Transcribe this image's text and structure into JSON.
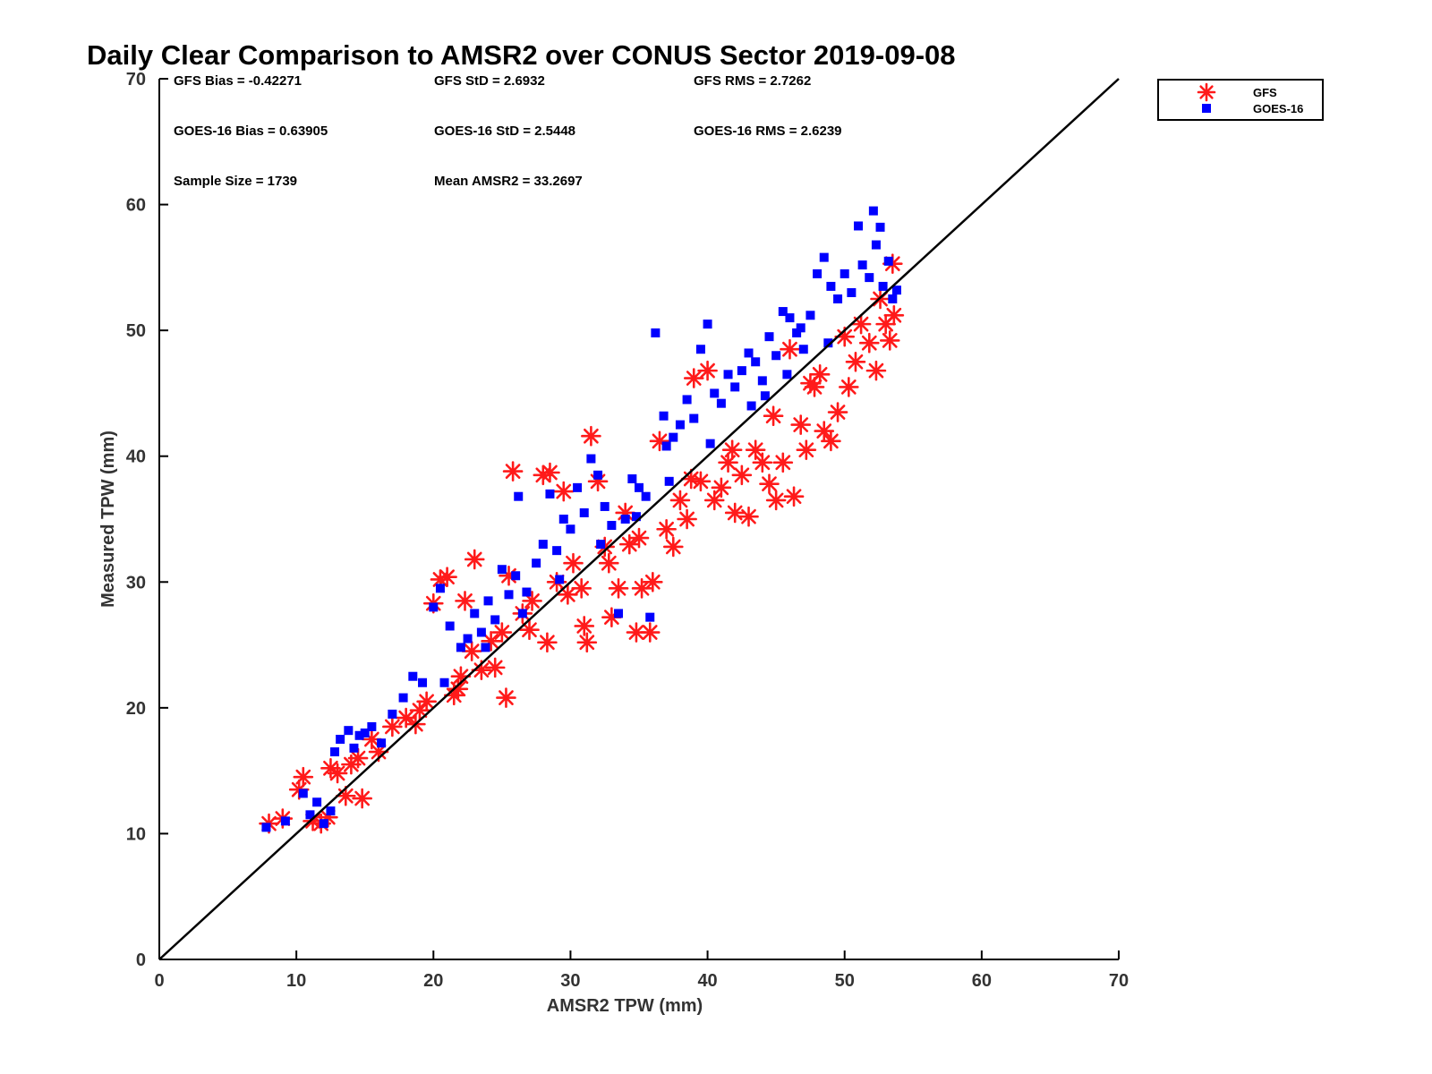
{
  "chart_data": {
    "type": "scatter",
    "title": "Daily Clear Comparison to AMSR2 over CONUS Sector 2019-09-08",
    "xlabel": "AMSR2 TPW (mm)",
    "ylabel": "Measured TPW (mm)",
    "xlim": [
      0,
      70
    ],
    "ylim": [
      0,
      70
    ],
    "xticks": [
      "0",
      "10",
      "20",
      "30",
      "40",
      "50",
      "60",
      "70"
    ],
    "yticks": [
      "0",
      "10",
      "20",
      "30",
      "40",
      "50",
      "60",
      "70"
    ],
    "grid": false,
    "reference_line": {
      "from": [
        0,
        0
      ],
      "to": [
        70,
        70
      ],
      "color": "#000000"
    },
    "legend": {
      "position": "top-right",
      "entries": [
        {
          "label": "GFS",
          "marker": "asterisk",
          "color": "#ff1a1a"
        },
        {
          "label": "GOES-16",
          "marker": "square",
          "color": "#0000ff"
        }
      ]
    },
    "stats": [
      [
        "GFS Bias = -0.42271",
        "GFS StD = 2.6932",
        "GFS RMS = 2.7262"
      ],
      [
        "GOES-16 Bias = 0.63905",
        "GOES-16 StD = 2.5448",
        "GOES-16 RMS = 2.6239"
      ],
      [
        "Sample Size = 1739",
        "Mean AMSR2 = 33.2697"
      ]
    ],
    "series": [
      {
        "name": "GFS",
        "marker": "asterisk",
        "color": "#ff1a1a",
        "points": [
          [
            8.0,
            10.8
          ],
          [
            9.0,
            11.2
          ],
          [
            10.2,
            13.5
          ],
          [
            10.5,
            14.5
          ],
          [
            11.2,
            11.0
          ],
          [
            11.8,
            10.8
          ],
          [
            12.3,
            11.3
          ],
          [
            12.5,
            15.2
          ],
          [
            13.0,
            14.8
          ],
          [
            13.6,
            13.0
          ],
          [
            14.0,
            15.5
          ],
          [
            14.5,
            16.0
          ],
          [
            14.8,
            12.8
          ],
          [
            15.5,
            17.5
          ],
          [
            16.0,
            16.5
          ],
          [
            17.0,
            18.5
          ],
          [
            18.0,
            19.2
          ],
          [
            18.7,
            18.7
          ],
          [
            19.5,
            20.5
          ],
          [
            20.0,
            28.3
          ],
          [
            20.5,
            30.2
          ],
          [
            21.0,
            30.4
          ],
          [
            21.5,
            21.0
          ],
          [
            22.0,
            22.5
          ],
          [
            22.3,
            28.5
          ],
          [
            22.8,
            24.5
          ],
          [
            23.0,
            31.8
          ],
          [
            23.5,
            23.0
          ],
          [
            24.2,
            25.3
          ],
          [
            25.0,
            26.0
          ],
          [
            25.3,
            20.8
          ],
          [
            25.5,
            30.5
          ],
          [
            25.8,
            38.8
          ],
          [
            26.5,
            27.5
          ],
          [
            27.2,
            28.5
          ],
          [
            28.0,
            38.5
          ],
          [
            28.3,
            25.2
          ],
          [
            28.5,
            38.7
          ],
          [
            29.0,
            30.0
          ],
          [
            29.5,
            37.2
          ],
          [
            30.2,
            31.5
          ],
          [
            30.8,
            29.5
          ],
          [
            31.0,
            26.5
          ],
          [
            31.2,
            25.2
          ],
          [
            31.5,
            41.6
          ],
          [
            32.0,
            38.0
          ],
          [
            32.5,
            32.8
          ],
          [
            33.0,
            27.2
          ],
          [
            33.5,
            29.5
          ],
          [
            34.0,
            35.5
          ],
          [
            34.3,
            33.0
          ],
          [
            34.8,
            26.0
          ],
          [
            35.2,
            29.5
          ],
          [
            35.8,
            26.0
          ],
          [
            36.0,
            30.0
          ],
          [
            36.5,
            41.2
          ],
          [
            37.0,
            34.2
          ],
          [
            37.5,
            32.8
          ],
          [
            38.0,
            36.5
          ],
          [
            38.5,
            35.0
          ],
          [
            39.0,
            46.2
          ],
          [
            39.5,
            38.0
          ],
          [
            40.0,
            46.8
          ],
          [
            40.5,
            36.5
          ],
          [
            41.0,
            37.5
          ],
          [
            41.5,
            39.5
          ],
          [
            42.0,
            35.5
          ],
          [
            42.5,
            38.5
          ],
          [
            43.0,
            35.2
          ],
          [
            43.5,
            40.5
          ],
          [
            44.0,
            39.5
          ],
          [
            44.5,
            37.8
          ],
          [
            45.0,
            36.5
          ],
          [
            45.5,
            39.5
          ],
          [
            46.0,
            48.5
          ],
          [
            46.3,
            36.8
          ],
          [
            46.8,
            42.5
          ],
          [
            47.2,
            40.5
          ],
          [
            47.8,
            45.5
          ],
          [
            48.2,
            46.5
          ],
          [
            48.5,
            42.0
          ],
          [
            49.0,
            41.2
          ],
          [
            49.5,
            43.5
          ],
          [
            50.0,
            49.5
          ],
          [
            50.3,
            45.5
          ],
          [
            50.8,
            47.5
          ],
          [
            51.2,
            50.5
          ],
          [
            51.8,
            49.0
          ],
          [
            52.3,
            46.8
          ],
          [
            52.6,
            52.5
          ],
          [
            53.0,
            50.5
          ],
          [
            53.3,
            49.2
          ],
          [
            53.5,
            55.3
          ],
          [
            53.6,
            51.2
          ],
          [
            19.0,
            19.8
          ],
          [
            21.8,
            21.5
          ],
          [
            24.5,
            23.2
          ],
          [
            27.0,
            26.2
          ],
          [
            29.8,
            29.0
          ],
          [
            32.8,
            31.5
          ],
          [
            35.0,
            33.5
          ],
          [
            38.8,
            38.2
          ],
          [
            41.8,
            40.5
          ],
          [
            44.8,
            43.2
          ],
          [
            47.5,
            45.8
          ]
        ]
      },
      {
        "name": "GOES-16",
        "marker": "square",
        "color": "#0000ff",
        "points": [
          [
            7.8,
            10.5
          ],
          [
            9.2,
            11.0
          ],
          [
            10.5,
            13.2
          ],
          [
            11.0,
            11.5
          ],
          [
            11.5,
            12.5
          ],
          [
            12.0,
            10.8
          ],
          [
            12.5,
            11.8
          ],
          [
            12.8,
            16.5
          ],
          [
            13.2,
            17.5
          ],
          [
            13.8,
            18.2
          ],
          [
            14.2,
            16.8
          ],
          [
            14.6,
            17.8
          ],
          [
            15.0,
            18.0
          ],
          [
            15.5,
            18.5
          ],
          [
            16.2,
            17.2
          ],
          [
            17.0,
            19.5
          ],
          [
            17.8,
            20.8
          ],
          [
            18.5,
            22.5
          ],
          [
            19.2,
            22.0
          ],
          [
            20.0,
            28.0
          ],
          [
            20.5,
            29.5
          ],
          [
            21.2,
            26.5
          ],
          [
            22.0,
            24.8
          ],
          [
            22.5,
            25.5
          ],
          [
            23.0,
            27.5
          ],
          [
            23.5,
            26.0
          ],
          [
            24.0,
            28.5
          ],
          [
            24.5,
            27.0
          ],
          [
            25.0,
            31.0
          ],
          [
            25.5,
            29.0
          ],
          [
            26.0,
            30.5
          ],
          [
            26.2,
            36.8
          ],
          [
            26.8,
            29.2
          ],
          [
            27.5,
            31.5
          ],
          [
            28.0,
            33.0
          ],
          [
            28.5,
            37.0
          ],
          [
            29.0,
            32.5
          ],
          [
            29.5,
            35.0
          ],
          [
            30.0,
            34.2
          ],
          [
            30.5,
            37.5
          ],
          [
            31.0,
            35.5
          ],
          [
            31.5,
            39.8
          ],
          [
            32.0,
            38.5
          ],
          [
            32.5,
            36.0
          ],
          [
            33.0,
            34.5
          ],
          [
            33.5,
            27.5
          ],
          [
            34.0,
            35.0
          ],
          [
            34.5,
            38.2
          ],
          [
            35.0,
            37.5
          ],
          [
            35.5,
            36.8
          ],
          [
            35.8,
            27.2
          ],
          [
            36.2,
            49.8
          ],
          [
            37.0,
            40.8
          ],
          [
            37.5,
            41.5
          ],
          [
            38.0,
            42.5
          ],
          [
            38.5,
            44.5
          ],
          [
            39.0,
            43.0
          ],
          [
            39.5,
            48.5
          ],
          [
            40.0,
            50.5
          ],
          [
            40.5,
            45.0
          ],
          [
            41.0,
            44.2
          ],
          [
            41.5,
            46.5
          ],
          [
            42.0,
            45.5
          ],
          [
            42.5,
            46.8
          ],
          [
            43.0,
            48.2
          ],
          [
            43.5,
            47.5
          ],
          [
            44.0,
            46.0
          ],
          [
            44.5,
            49.5
          ],
          [
            45.0,
            48.0
          ],
          [
            45.5,
            51.5
          ],
          [
            46.0,
            51.0
          ],
          [
            46.5,
            49.8
          ],
          [
            47.0,
            48.5
          ],
          [
            47.5,
            51.2
          ],
          [
            48.0,
            54.5
          ],
          [
            48.5,
            55.8
          ],
          [
            49.0,
            53.5
          ],
          [
            49.5,
            52.5
          ],
          [
            50.0,
            54.5
          ],
          [
            50.5,
            53.0
          ],
          [
            51.0,
            58.3
          ],
          [
            51.3,
            55.2
          ],
          [
            51.8,
            54.2
          ],
          [
            52.1,
            59.5
          ],
          [
            52.3,
            56.8
          ],
          [
            52.6,
            58.2
          ],
          [
            52.8,
            53.5
          ],
          [
            53.2,
            55.5
          ],
          [
            53.5,
            52.5
          ],
          [
            53.8,
            53.2
          ],
          [
            20.8,
            22.0
          ],
          [
            23.8,
            24.8
          ],
          [
            26.5,
            27.5
          ],
          [
            29.2,
            30.2
          ],
          [
            32.2,
            33.0
          ],
          [
            34.8,
            35.2
          ],
          [
            37.2,
            38.0
          ],
          [
            40.2,
            41.0
          ],
          [
            43.2,
            44.0
          ],
          [
            45.8,
            46.5
          ],
          [
            48.8,
            49.0
          ],
          [
            36.8,
            43.2
          ],
          [
            44.2,
            44.8
          ],
          [
            46.8,
            50.2
          ]
        ]
      }
    ]
  }
}
